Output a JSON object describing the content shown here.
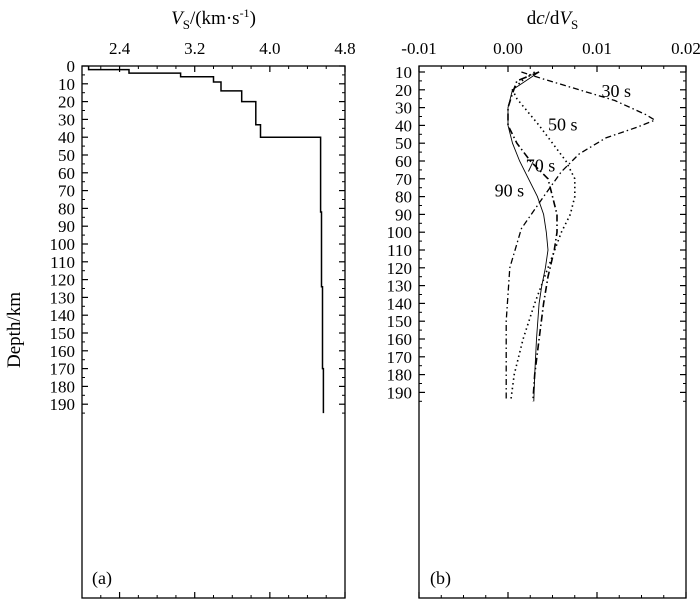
{
  "figure": {
    "shared_ylabel": "Depth/km"
  },
  "chart_data": [
    {
      "panel": "(a)",
      "type": "line",
      "title": "",
      "xlabel": "V_S/(km·s⁻¹)",
      "xlabel_parts": {
        "main": "V",
        "sub": "S",
        "unit_a": "/(km·s",
        "sup": "-1",
        "unit_b": ")"
      },
      "ylabel": "Depth/km",
      "xlim": [
        2.0,
        4.8
      ],
      "ylim": [
        0,
        195
      ],
      "y_inverted": true,
      "x_ticks": [
        "2.4",
        "3.2",
        "4.0",
        "4.8"
      ],
      "x_tick_values": [
        2.4,
        3.2,
        4.0,
        4.8
      ],
      "y_ticks": [
        "0",
        "10",
        "20",
        "30",
        "40",
        "50",
        "60",
        "70",
        "80",
        "90",
        "100",
        "110",
        "120",
        "130",
        "140",
        "150",
        "160",
        "170",
        "180",
        "190"
      ],
      "grid": false,
      "series": [
        {
          "style": "solid",
          "points": [
            [
              2.07,
              0
            ],
            [
              2.07,
              2
            ],
            [
              2.5,
              2
            ],
            [
              2.5,
              4
            ],
            [
              3.05,
              4
            ],
            [
              3.05,
              6
            ],
            [
              3.4,
              6
            ],
            [
              3.4,
              9
            ],
            [
              3.48,
              9
            ],
            [
              3.48,
              14
            ],
            [
              3.7,
              14
            ],
            [
              3.7,
              20
            ],
            [
              3.85,
              20
            ],
            [
              3.85,
              33
            ],
            [
              3.9,
              33
            ],
            [
              3.9,
              40
            ],
            [
              4.54,
              40
            ],
            [
              4.54,
              82
            ],
            [
              4.55,
              82
            ],
            [
              4.55,
              124
            ],
            [
              4.56,
              124
            ],
            [
              4.56,
              170
            ],
            [
              4.57,
              170
            ],
            [
              4.57,
              195
            ]
          ]
        }
      ]
    },
    {
      "panel": "(b)",
      "type": "line",
      "title": "",
      "xlabel": "dc/dV_S",
      "xlabel_parts": {
        "main": "dc/dV",
        "sub": "S"
      },
      "ylabel": "Depth/km",
      "xlim": [
        -0.01,
        0.02
      ],
      "ylim": [
        10,
        195
      ],
      "y_inverted": true,
      "x_ticks": [
        "-0.01",
        "0.00",
        "0.01",
        "0.02"
      ],
      "x_tick_values": [
        -0.01,
        0.0,
        0.01,
        0.02
      ],
      "y_ticks": [
        "10",
        "20",
        "30",
        "40",
        "50",
        "60",
        "70",
        "80",
        "90",
        "100",
        "110",
        "120",
        "130",
        "140",
        "150",
        "160",
        "170",
        "180",
        "190"
      ],
      "grid": false,
      "series": [
        {
          "name": "30 s",
          "style": "dashdot-long",
          "points": [
            [
              0.0015,
              10
            ],
            [
              0.004,
              14
            ],
            [
              0.008,
              20
            ],
            [
              0.012,
              26
            ],
            [
              0.0155,
              34
            ],
            [
              0.0165,
              37
            ],
            [
              0.0145,
              41
            ],
            [
              0.011,
              47
            ],
            [
              0.008,
              56
            ],
            [
              0.006,
              66
            ],
            [
              0.004,
              80
            ],
            [
              0.0015,
              98
            ],
            [
              0.0002,
              120
            ],
            [
              -0.0002,
              150
            ],
            [
              -0.0002,
              195
            ]
          ]
        },
        {
          "name": "50 s",
          "style": "dotted",
          "points": [
            [
              0.003,
              10
            ],
            [
              0.002,
              13
            ],
            [
              0.0005,
              20
            ],
            [
              0.001,
              25
            ],
            [
              0.002,
              31
            ],
            [
              0.0035,
              40
            ],
            [
              0.005,
              50
            ],
            [
              0.0065,
              60
            ],
            [
              0.0075,
              70
            ],
            [
              0.0075,
              80
            ],
            [
              0.007,
              90
            ],
            [
              0.006,
              100
            ],
            [
              0.0045,
              120
            ],
            [
              0.003,
              140
            ],
            [
              0.0017,
              160
            ],
            [
              0.0007,
              180
            ],
            [
              0.0003,
              195
            ]
          ]
        },
        {
          "name": "70 s",
          "style": "dashdot",
          "points": [
            [
              0.0035,
              10
            ],
            [
              0.001,
              15
            ],
            [
              0.0005,
              22
            ],
            [
              0.0,
              30
            ],
            [
              0.0,
              40
            ],
            [
              0.001,
              50
            ],
            [
              0.0025,
              60
            ],
            [
              0.0045,
              70
            ],
            [
              0.005,
              80
            ],
            [
              0.0055,
              90
            ],
            [
              0.0055,
              100
            ],
            [
              0.0052,
              110
            ],
            [
              0.0045,
              125
            ],
            [
              0.004,
              140
            ],
            [
              0.0035,
              160
            ],
            [
              0.003,
              180
            ],
            [
              0.0028,
              195
            ]
          ]
        },
        {
          "name": "90 s",
          "style": "solid-thin",
          "points": [
            [
              0.0035,
              10
            ],
            [
              0.002,
              15
            ],
            [
              0.0005,
              20
            ],
            [
              0.0,
              30
            ],
            [
              0.0,
              40
            ],
            [
              0.0005,
              50
            ],
            [
              0.0013,
              60
            ],
            [
              0.0023,
              70
            ],
            [
              0.0033,
              80
            ],
            [
              0.004,
              90
            ],
            [
              0.0043,
              100
            ],
            [
              0.0045,
              110
            ],
            [
              0.0042,
              120
            ],
            [
              0.0038,
              130
            ],
            [
              0.0035,
              140
            ],
            [
              0.0032,
              160
            ],
            [
              0.003,
              180
            ],
            [
              0.0029,
              195
            ]
          ]
        }
      ],
      "annotations": [
        {
          "text": "30 s",
          "x": 0.0105,
          "y": 24
        },
        {
          "text": "50 s",
          "x": 0.0045,
          "y": 43
        },
        {
          "text": "70 s",
          "x": 0.002,
          "y": 66
        },
        {
          "text": "90 s",
          "x": -0.0015,
          "y": 80
        }
      ]
    }
  ]
}
